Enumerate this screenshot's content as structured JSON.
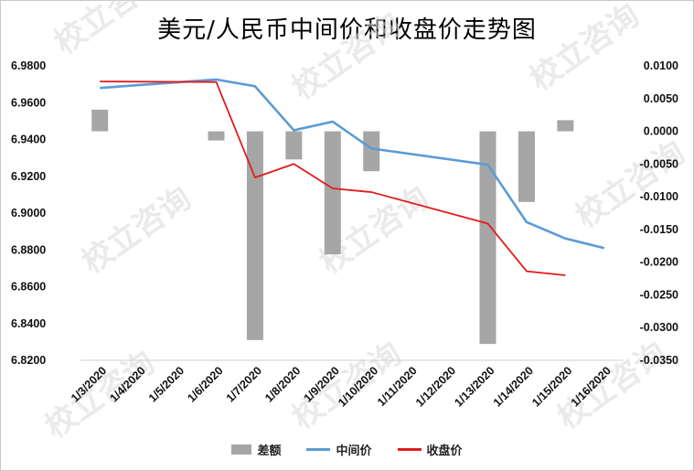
{
  "title": "美元/人民币中间价和收盘价走势图",
  "watermark_text": "校立咨询",
  "chart_data": {
    "type": "bar+line",
    "categories": [
      "1/3/2020",
      "1/4/2020",
      "1/5/2020",
      "1/6/2020",
      "1/7/2020",
      "1/8/2020",
      "1/9/2020",
      "1/10/2020",
      "1/11/2020",
      "1/12/2020",
      "1/13/2020",
      "1/14/2020",
      "1/15/2020",
      "1/16/2020"
    ],
    "left_axis": {
      "ylim": [
        6.82,
        6.98
      ],
      "ticks": [
        "6.9800",
        "6.9600",
        "6.9400",
        "6.9200",
        "6.9000",
        "6.8800",
        "6.8600",
        "6.8400",
        "6.8200"
      ]
    },
    "right_axis": {
      "ylim": [
        -0.035,
        0.01
      ],
      "ticks": [
        "0.0100",
        "0.0050",
        "0.0000",
        "-0.0050",
        "-0.0100",
        "-0.0150",
        "-0.0200",
        "-0.0250",
        "-0.0300",
        "-0.0350"
      ]
    },
    "series": [
      {
        "name": "差额",
        "type": "bar",
        "axis": "right",
        "color": "#a6a6a6",
        "values": [
          0.0033,
          null,
          null,
          -0.0014,
          -0.0319,
          -0.0043,
          -0.0188,
          -0.0061,
          null,
          null,
          -0.0325,
          -0.0108,
          0.0017,
          null
        ]
      },
      {
        "name": "中间价",
        "type": "line",
        "axis": "left",
        "color": "#5b9bd5",
        "values": [
          6.968,
          null,
          null,
          6.9726,
          6.9689,
          6.945,
          6.9497,
          6.9351,
          null,
          null,
          6.9263,
          6.8951,
          6.8862,
          6.881
        ]
      },
      {
        "name": "收盘价",
        "type": "line",
        "axis": "left",
        "color": "#e31a1c",
        "values": [
          6.9715,
          null,
          null,
          6.9712,
          6.9193,
          6.9267,
          6.9134,
          6.9114,
          null,
          null,
          6.8943,
          6.8684,
          6.8662,
          null
        ]
      }
    ],
    "grid": false,
    "legend": "bottom"
  }
}
